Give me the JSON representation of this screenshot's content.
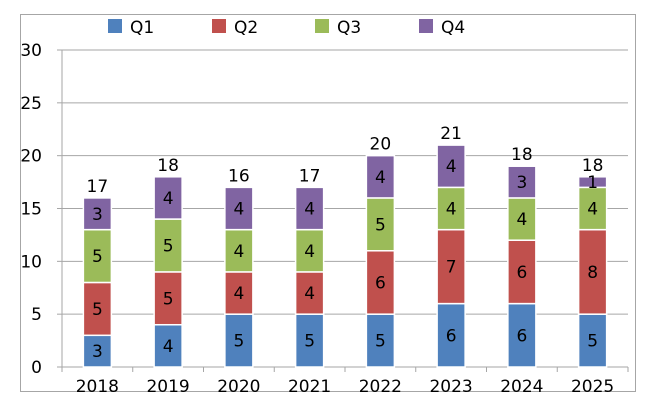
{
  "chart_data": {
    "type": "bar",
    "stacked": true,
    "title": "",
    "xlabel": "",
    "ylabel": "",
    "ylim": [
      0,
      30
    ],
    "yticks": [
      0,
      5,
      10,
      15,
      20,
      25,
      30
    ],
    "grid": true,
    "legend_position": "top",
    "categories": [
      "2018",
      "2019",
      "2020",
      "2021",
      "2022",
      "2023",
      "2024",
      "2025"
    ],
    "series": [
      {
        "name": "Q1",
        "color": "#4f81bd",
        "values": [
          3,
          4,
          5,
          5,
          5,
          6,
          6,
          5
        ]
      },
      {
        "name": "Q2",
        "color": "#c0504d",
        "values": [
          5,
          5,
          4,
          4,
          6,
          7,
          6,
          8
        ]
      },
      {
        "name": "Q3",
        "color": "#9bbb59",
        "values": [
          5,
          5,
          4,
          4,
          5,
          4,
          4,
          4
        ]
      },
      {
        "name": "Q4",
        "color": "#8064a2",
        "values": [
          3,
          4,
          4,
          4,
          4,
          4,
          3,
          1
        ]
      }
    ],
    "totals": [
      17,
      18,
      16,
      17,
      20,
      21,
      18,
      18
    ]
  }
}
